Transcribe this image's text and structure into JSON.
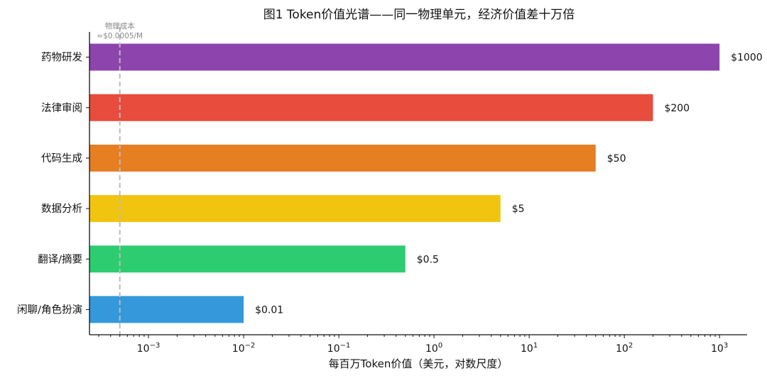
{
  "chart_data": {
    "type": "bar",
    "orientation": "horizontal",
    "title": "图1  Token价值光谱——同一物理单元，经济价值差十万倍",
    "xlabel": "每百万Token价值（美元，对数尺度）",
    "ylabel": "",
    "x_scale": "log",
    "xlim": [
      0.00024,
      1950
    ],
    "x_ticks": [
      0.001,
      0.01,
      0.1,
      1,
      10,
      100,
      1000
    ],
    "x_tick_labels": [
      [
        "10",
        "−3"
      ],
      [
        "10",
        "−2"
      ],
      [
        "10",
        "−1"
      ],
      [
        "10",
        "0"
      ],
      [
        "10",
        "1"
      ],
      [
        "10",
        "2"
      ],
      [
        "10",
        "3"
      ]
    ],
    "grid": false,
    "categories": [
      "药物研发",
      "法律审阅",
      "代码生成",
      "数据分析",
      "翻译/摘要",
      "闲聊/角色扮演"
    ],
    "values": [
      1000,
      200,
      50,
      5,
      0.5,
      0.01
    ],
    "data_labels": [
      "$1000",
      "$200",
      "$50",
      "$5",
      "$0.5",
      "$0.01"
    ],
    "colors": [
      "#8e44ad",
      "#e74c3c",
      "#e67e22",
      "#f1c40f",
      "#2ecc71",
      "#3498db"
    ],
    "reference_line": {
      "value": 0.0005,
      "label_line1": "物理成本",
      "label_line2": "≈$0.0005/M",
      "color": "#bbbbbb",
      "style": "dashed"
    }
  }
}
